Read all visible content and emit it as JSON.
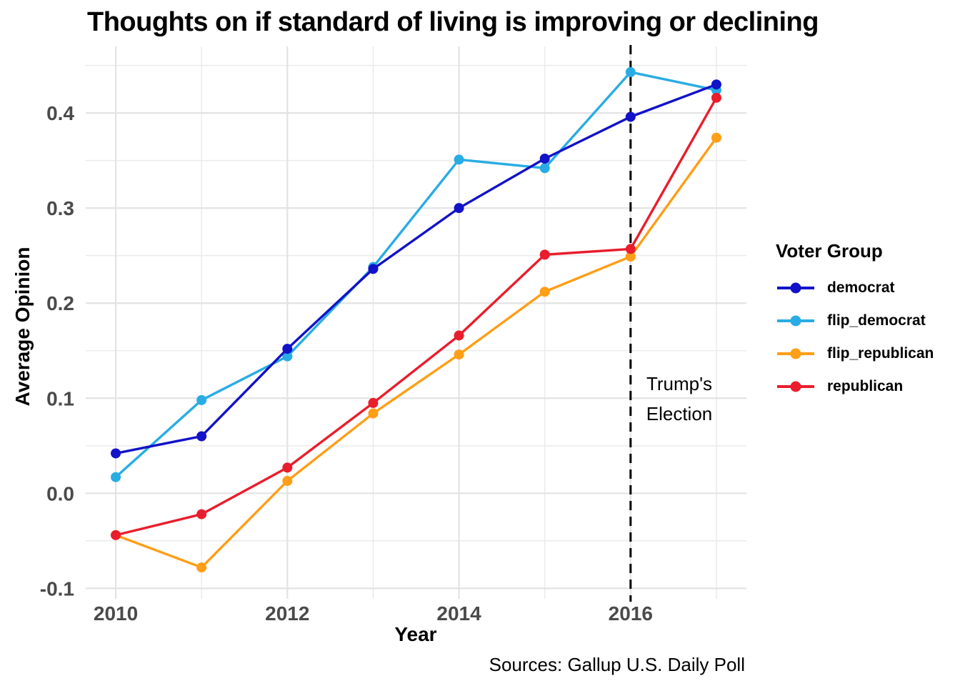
{
  "title": "Thoughts on if standard of living is improving or declining",
  "caption": "Sources: Gallup U.S. Daily Poll",
  "legend": {
    "title": "Voter Group"
  },
  "chart_data": {
    "type": "line",
    "title": "Thoughts on if standard of living is improving or declining",
    "xlabel": "Year",
    "ylabel": "Average Opinion",
    "x": [
      2010,
      2011,
      2012,
      2013,
      2014,
      2015,
      2016,
      2017
    ],
    "series": [
      {
        "name": "democrat",
        "color": "#1212C8",
        "values": [
          0.042,
          0.06,
          0.152,
          0.236,
          0.3,
          0.352,
          0.396,
          0.43
        ]
      },
      {
        "name": "flip_democrat",
        "color": "#29ACE3",
        "values": [
          0.017,
          0.098,
          0.144,
          0.238,
          0.351,
          0.342,
          0.443,
          0.424
        ]
      },
      {
        "name": "flip_republican",
        "color": "#FF9E17",
        "values": [
          -0.044,
          -0.078,
          0.013,
          0.084,
          0.146,
          0.212,
          0.249,
          0.374
        ]
      },
      {
        "name": "republican",
        "color": "#E91D2C",
        "values": [
          -0.044,
          -0.022,
          0.027,
          0.095,
          0.166,
          0.251,
          0.257,
          0.416
        ]
      }
    ],
    "x_ticks": [
      2010,
      2012,
      2014,
      2016
    ],
    "x_tick_labels": [
      "2010",
      "2012",
      "2014",
      "2016"
    ],
    "x_minor_ticks": [
      2011,
      2013,
      2015,
      2017
    ],
    "y_ticks": [
      -0.1,
      0.0,
      0.1,
      0.2,
      0.3,
      0.4
    ],
    "y_tick_labels": [
      "-0.1",
      "0.0",
      "0.1",
      "0.2",
      "0.3",
      "0.4"
    ],
    "y_minor_ticks": [
      -0.05,
      0.05,
      0.15,
      0.25,
      0.35,
      0.45
    ],
    "xlim": [
      2009.65,
      2017.35
    ],
    "ylim": [
      -0.111,
      0.47
    ],
    "grid": true,
    "legend_position": "right",
    "legend_title": "Voter Group",
    "vline": {
      "x": 2016,
      "style": "dashed",
      "color": "#000000",
      "label": [
        "Trump's",
        "Election"
      ]
    },
    "colors": {
      "grid_major": "#E3E3E3",
      "grid_minor": "#ECECEC",
      "tick_text": "#4A4A4A"
    }
  }
}
